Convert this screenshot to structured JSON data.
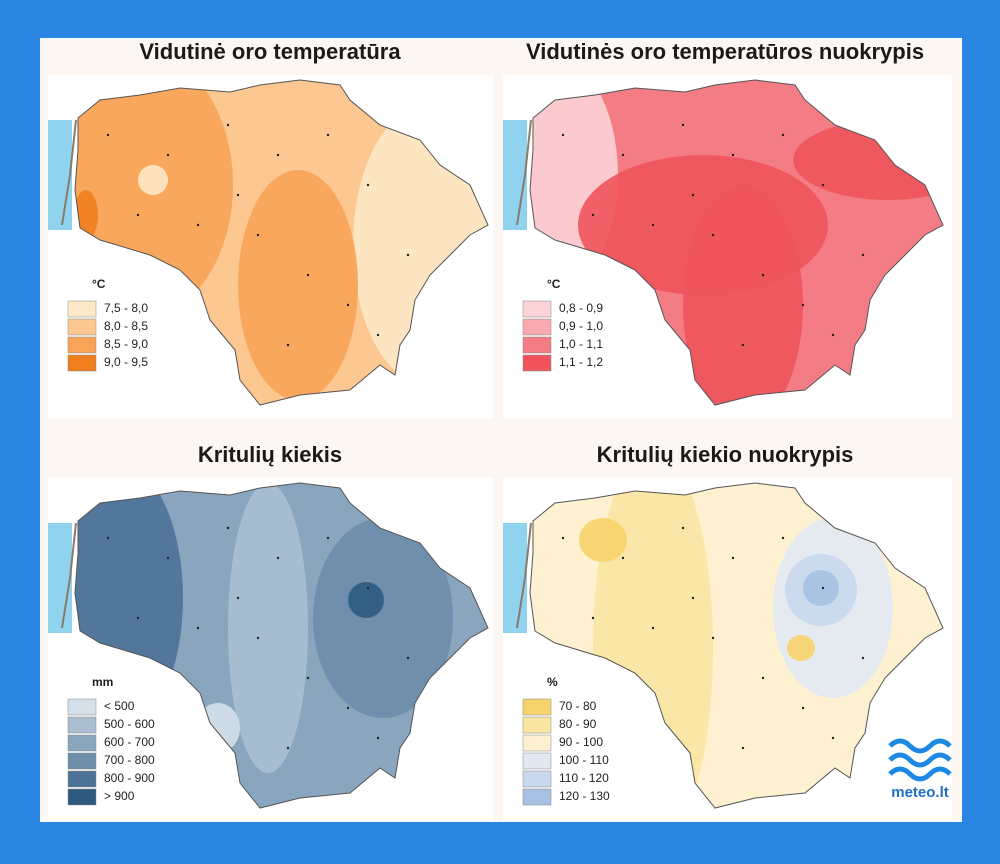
{
  "panels": [
    {
      "title": "Vidutinė oro temperatūra",
      "legend_unit": "°C",
      "legend": [
        {
          "label": "7,5 - 8,0",
          "color": "#fde8c8"
        },
        {
          "label": "8,0 - 8,5",
          "color": "#fcc790"
        },
        {
          "label": "8,5 - 9,0",
          "color": "#f8a358"
        },
        {
          "label": "9,0 - 9,5",
          "color": "#f07f1e"
        }
      ]
    },
    {
      "title": "Vidutinės oro temperatūros nuokrypis",
      "legend_unit": "°C",
      "legend": [
        {
          "label": "0,8 - 0,9",
          "color": "#fbd3d6"
        },
        {
          "label": "0,9 - 1,0",
          "color": "#f8aab0"
        },
        {
          "label": "1,0 - 1,1",
          "color": "#f47d85"
        },
        {
          "label": "1,1 - 1,2",
          "color": "#f0545c"
        }
      ]
    },
    {
      "title": "Kritulių kiekis",
      "legend_unit": "mm",
      "legend": [
        {
          "label": "< 500",
          "color": "#d4e1ea"
        },
        {
          "label": "500 - 600",
          "color": "#a9bfd1"
        },
        {
          "label": "600 - 700",
          "color": "#8aa6bf"
        },
        {
          "label": "700 - 800",
          "color": "#6d8dab"
        },
        {
          "label": "800 - 900",
          "color": "#4d7297"
        },
        {
          "label": "> 900",
          "color": "#2e5a80"
        }
      ]
    },
    {
      "title": "Kritulių kiekio nuokrypis",
      "legend_unit": "%",
      "legend": [
        {
          "label": "70 - 80",
          "color": "#f7d36b"
        },
        {
          "label": "80 - 90",
          "color": "#fae5a2"
        },
        {
          "label": "90 - 100",
          "color": "#fdf1d2"
        },
        {
          "label": "100 - 110",
          "color": "#e2e9f3"
        },
        {
          "label": "110 - 120",
          "color": "#c9d8ec"
        },
        {
          "label": "120 - 130",
          "color": "#a6c1e2"
        }
      ]
    }
  ],
  "brand": "meteo.lt"
}
